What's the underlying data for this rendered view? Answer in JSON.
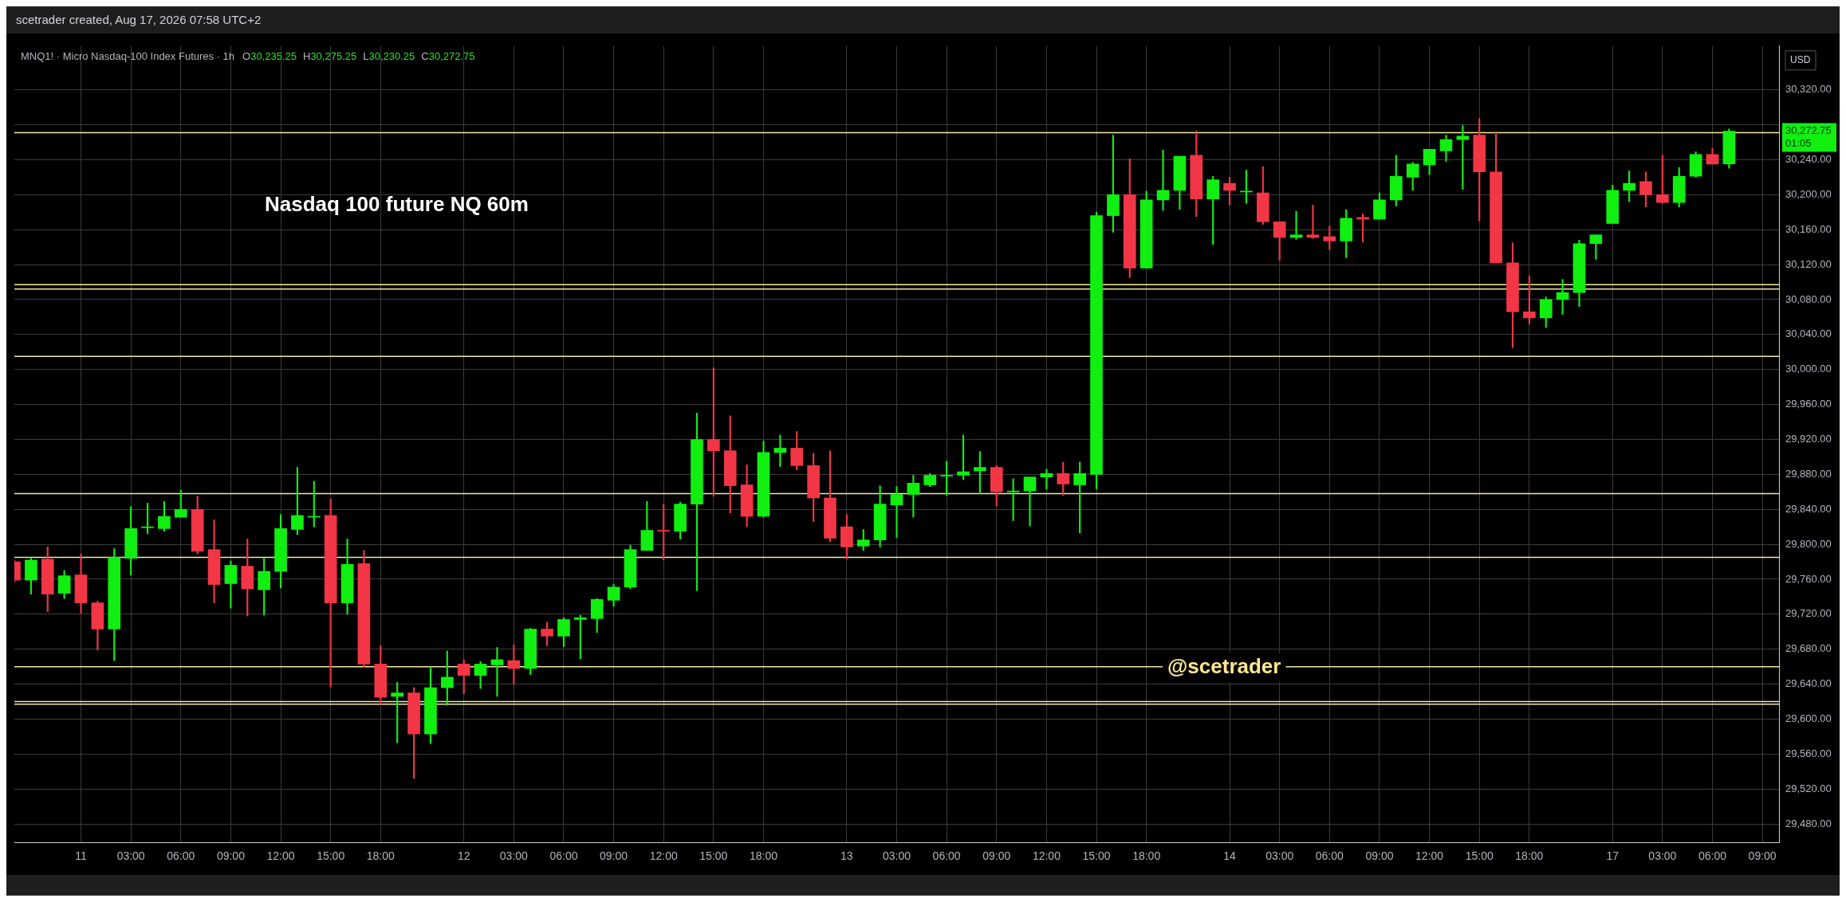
{
  "chart_data": {
    "type": "candlestick",
    "title": "Nasdaq 100 future NQ 60m",
    "subtitle": "MNQ1! · Micro Nasdaq-100 Index Futures · 1h",
    "annotations": [
      "scetrader created, Aug 17, 2026 07:58 UTC+2",
      "O30,235.25 H30,275.25 L30,230.25 C30,272.75",
      "USD",
      "@scetrader",
      "30,272.75",
      "01:05"
    ],
    "categories": [
      null,
      null,
      null,
      null,
      "11",
      null,
      null,
      "03:00",
      null,
      null,
      "06:00",
      null,
      null,
      "09:00",
      null,
      null,
      "12:00",
      null,
      null,
      "15:00",
      null,
      null,
      "18:00",
      null,
      null,
      null,
      null,
      "12",
      null,
      null,
      "03:00",
      null,
      null,
      "06:00",
      null,
      null,
      "09:00",
      null,
      null,
      "12:00",
      null,
      null,
      "15:00",
      null,
      null,
      "18:00",
      null,
      null,
      null,
      null,
      "13",
      null,
      null,
      "03:00",
      null,
      null,
      "06:00",
      null,
      null,
      "09:00",
      null,
      null,
      "12:00",
      null,
      null,
      "15:00",
      null,
      null,
      "18:00",
      null,
      null,
      null,
      null,
      "14",
      null,
      null,
      "03:00",
      null,
      null,
      "06:00",
      null,
      null,
      "09:00",
      null,
      null,
      "12:00",
      null,
      null,
      "15:00",
      null,
      null,
      "18:00",
      null,
      null,
      null,
      null,
      "17",
      null,
      null,
      "03:00",
      null,
      null,
      "06:00",
      null,
      null,
      "09:00",
      null
    ],
    "ohlc": [
      [
        29780,
        29782,
        29757,
        29759
      ],
      [
        29759,
        29784,
        29743,
        29782
      ],
      [
        29783,
        29797,
        29723,
        29743
      ],
      [
        29744,
        29770,
        29738,
        29764
      ],
      [
        29765,
        29789,
        29721,
        29733
      ],
      [
        29733,
        29735,
        29679,
        29703
      ],
      [
        29703,
        29795,
        29667,
        29785
      ],
      [
        29784,
        29843,
        29765,
        29818
      ],
      [
        29819,
        29847,
        29812,
        29820
      ],
      [
        29818,
        29849,
        29815,
        29832
      ],
      [
        29831,
        29862,
        29831,
        29840
      ],
      [
        29840,
        29855,
        29789,
        29792
      ],
      [
        29794,
        29828,
        29733,
        29754
      ],
      [
        29755,
        29781,
        29727,
        29776
      ],
      [
        29775,
        29806,
        29718,
        29749
      ],
      [
        29748,
        29784,
        29719,
        29769
      ],
      [
        29769,
        29834,
        29750,
        29818
      ],
      [
        29817,
        29888,
        29811,
        29833
      ],
      [
        29831,
        29872,
        29820,
        29832
      ],
      [
        29833,
        29852,
        29637,
        29733
      ],
      [
        29733,
        29806,
        29720,
        29777
      ],
      [
        29778,
        29793,
        29660,
        29663
      ],
      [
        29663,
        29684,
        29617,
        29625
      ],
      [
        29626,
        29642,
        29573,
        29630
      ],
      [
        29630,
        29636,
        29532,
        29583
      ],
      [
        29583,
        29660,
        29572,
        29636
      ],
      [
        29636,
        29678,
        29616,
        29648
      ],
      [
        29663,
        29668,
        29629,
        29650
      ],
      [
        29650,
        29666,
        29635,
        29663
      ],
      [
        29662,
        29682,
        29626,
        29668
      ],
      [
        29667,
        29685,
        29640,
        29658
      ],
      [
        29658,
        29704,
        29651,
        29703
      ],
      [
        29703,
        29711,
        29684,
        29695
      ],
      [
        29695,
        29716,
        29683,
        29714
      ],
      [
        29714,
        29719,
        29669,
        29716
      ],
      [
        29715,
        29738,
        29699,
        29737
      ],
      [
        29736,
        29754,
        29729,
        29751
      ],
      [
        29751,
        29799,
        29749,
        29794
      ],
      [
        29793,
        29849,
        29793,
        29816
      ],
      [
        29816,
        29846,
        29782,
        29815
      ],
      [
        29815,
        29848,
        29806,
        29846
      ],
      [
        29846,
        29950,
        29747,
        29920
      ],
      [
        29920,
        30002,
        29855,
        29907
      ],
      [
        29907,
        29947,
        29836,
        29867
      ],
      [
        29868,
        29891,
        29820,
        29832
      ],
      [
        29832,
        29918,
        29831,
        29905
      ],
      [
        29905,
        29925,
        29889,
        29910
      ],
      [
        29910,
        29929,
        29885,
        29890
      ],
      [
        29890,
        29904,
        29826,
        29853
      ],
      [
        29853,
        29907,
        29803,
        29807
      ],
      [
        29820,
        29834,
        29783,
        29797
      ],
      [
        29798,
        29817,
        29793,
        29805
      ],
      [
        29805,
        29867,
        29797,
        29846
      ],
      [
        29845,
        29866,
        29808,
        29857
      ],
      [
        29857,
        29879,
        29831,
        29870
      ],
      [
        29868,
        29881,
        29866,
        29879
      ],
      [
        29878,
        29895,
        29856,
        29879
      ],
      [
        29879,
        29925,
        29874,
        29883
      ],
      [
        29884,
        29906,
        29858,
        29888
      ],
      [
        29888,
        29890,
        29844,
        29860
      ],
      [
        29860,
        29875,
        29827,
        29861
      ],
      [
        29861,
        29877,
        29821,
        29877
      ],
      [
        29877,
        29886,
        29863,
        29881
      ],
      [
        29881,
        29894,
        29856,
        29869
      ],
      [
        29868,
        29894,
        29813,
        29881
      ],
      [
        29880,
        30180,
        29863,
        30176
      ],
      [
        30176,
        30268,
        30157,
        30200
      ],
      [
        30200,
        30241,
        30105,
        30116
      ],
      [
        30116,
        30204,
        30116,
        30194
      ],
      [
        30194,
        30251,
        30182,
        30205
      ],
      [
        30205,
        30244,
        30183,
        30244
      ],
      [
        30245,
        30273,
        30175,
        30195
      ],
      [
        30195,
        30221,
        30143,
        30217
      ],
      [
        30213,
        30220,
        30188,
        30205
      ],
      [
        30203,
        30228,
        30190,
        30204
      ],
      [
        30202,
        30232,
        30166,
        30169
      ],
      [
        30169,
        30169,
        30125,
        30151
      ],
      [
        30151,
        30181,
        30149,
        30154
      ],
      [
        30154,
        30188,
        30150,
        30151
      ],
      [
        30152,
        30164,
        30137,
        30147
      ],
      [
        30147,
        30183,
        30128,
        30173
      ],
      [
        30174,
        30178,
        30146,
        30172
      ],
      [
        30172,
        30202,
        30172,
        30194
      ],
      [
        30194,
        30245,
        30187,
        30221
      ],
      [
        30220,
        30237,
        30205,
        30235
      ],
      [
        30234,
        30252,
        30223,
        30252
      ],
      [
        30250,
        30268,
        30238,
        30263
      ],
      [
        30263,
        30279,
        30206,
        30267
      ],
      [
        30268,
        30287,
        30170,
        30226
      ],
      [
        30226,
        30272,
        30122,
        30122
      ],
      [
        30122,
        30145,
        30025,
        30066
      ],
      [
        30066,
        30107,
        30052,
        30059
      ],
      [
        30059,
        30083,
        30048,
        30080
      ],
      [
        30080,
        30103,
        30063,
        30088
      ],
      [
        30088,
        30148,
        30072,
        30144
      ],
      [
        30144,
        30154,
        30126,
        30154
      ],
      [
        30167,
        30211,
        30167,
        30205
      ],
      [
        30205,
        30227,
        30192,
        30213
      ],
      [
        30215,
        30226,
        30186,
        30200
      ],
      [
        30200,
        30245,
        30190,
        30191
      ],
      [
        30191,
        30231,
        30186,
        30221
      ],
      [
        30221,
        30249,
        30220,
        30246
      ],
      [
        30246,
        30253,
        30235,
        30235
      ],
      [
        30235.25,
        30275.25,
        30230.25,
        30272.75
      ],
      null,
      null,
      null
    ],
    "colors": [
      "#f23645",
      "#10ef10",
      "#f23645",
      "#10ef10",
      "#f23645",
      "#f23645",
      "#10ef10",
      "#10ef10",
      "#10ef10",
      "#10ef10",
      "#10ef10",
      "#f23645",
      "#f23645",
      "#10ef10",
      "#f23645",
      "#10ef10",
      "#10ef10",
      "#10ef10",
      "#10ef10",
      "#f23645",
      "#10ef10",
      "#f23645",
      "#f23645",
      "#10ef10",
      "#f23645",
      "#10ef10",
      "#10ef10",
      "#f23645",
      "#10ef10",
      "#10ef10",
      "#f23645",
      "#10ef10",
      "#f23645",
      "#10ef10",
      "#10ef10",
      "#10ef10",
      "#10ef10",
      "#10ef10",
      "#10ef10",
      "#f23645",
      "#10ef10",
      "#10ef10",
      "#f23645",
      "#f23645",
      "#f23645",
      "#10ef10",
      "#10ef10",
      "#f23645",
      "#f23645",
      "#f23645",
      "#f23645",
      "#10ef10",
      "#10ef10",
      "#10ef10",
      "#10ef10",
      "#10ef10",
      "#10ef10",
      "#10ef10",
      "#10ef10",
      "#f23645",
      "#10ef10",
      "#10ef10",
      "#10ef10",
      "#f23645",
      "#10ef10",
      "#10ef10",
      "#10ef10",
      "#f23645",
      "#10ef10",
      "#10ef10",
      "#10ef10",
      "#f23645",
      "#10ef10",
      "#f23645",
      "#10ef10",
      "#f23645",
      "#f23645",
      "#10ef10",
      "#f23645",
      "#f23645",
      "#10ef10",
      "#f23645",
      "#10ef10",
      "#10ef10",
      "#10ef10",
      "#10ef10",
      "#10ef10",
      "#10ef10",
      "#f23645",
      "#f23645",
      "#f23645",
      "#f23645",
      "#10ef10",
      "#10ef10",
      "#10ef10",
      "#10ef10",
      "#10ef10",
      "#10ef10",
      "#f23645",
      "#f23645",
      "#10ef10",
      "#10ef10",
      "#f23645",
      "#10ef10",
      null,
      null,
      null
    ],
    "ylim": [
      29459,
      30370
    ],
    "yticks": [
      {
        "value": 29480,
        "label": "29,480.00"
      },
      {
        "value": 29520,
        "label": "29,520.00"
      },
      {
        "value": 29560,
        "label": "29,560.00"
      },
      {
        "value": 29600,
        "label": "29,600.00"
      },
      {
        "value": 29640,
        "label": "29,640.00"
      },
      {
        "value": 29680,
        "label": "29,680.00"
      },
      {
        "value": 29720,
        "label": "29,720.00"
      },
      {
        "value": 29760,
        "label": "29,760.00"
      },
      {
        "value": 29800,
        "label": "29,800.00"
      },
      {
        "value": 29840,
        "label": "29,840.00"
      },
      {
        "value": 29880,
        "label": "29,880.00"
      },
      {
        "value": 29920,
        "label": "29,920.00"
      },
      {
        "value": 29960,
        "label": "29,960.00"
      },
      {
        "value": 30000,
        "label": "30,000.00"
      },
      {
        "value": 30040,
        "label": "30,040.00"
      },
      {
        "value": 30080,
        "label": "30,080.00"
      },
      {
        "value": 30120,
        "label": "30,120.00"
      },
      {
        "value": 30160,
        "label": "30,160.00"
      },
      {
        "value": 30200,
        "label": "30,200.00"
      },
      {
        "value": 30240,
        "label": "30,240.00"
      },
      {
        "value": 30280,
        "label": null
      },
      {
        "value": 30320,
        "label": "30,320.00"
      }
    ],
    "ref_lines": [
      {
        "axis": "y",
        "value": 30271,
        "color": "#f5e9a0"
      },
      {
        "axis": "y",
        "value": 30097,
        "color": "#f5e9a0"
      },
      {
        "axis": "y",
        "value": 30092,
        "color": "#f5e9a0"
      },
      {
        "axis": "y",
        "value": 30015,
        "color": "#f5e9a0"
      },
      {
        "axis": "y",
        "value": 29858,
        "color": "#f5e9a0"
      },
      {
        "axis": "y",
        "value": 29785,
        "color": "#f5e9a0"
      },
      {
        "axis": "y",
        "value": 29660,
        "color": "#f5e9a0"
      },
      {
        "axis": "y",
        "value": 29620,
        "color": "#f5e9a0"
      },
      {
        "axis": "y",
        "value": 29617,
        "color": "#f5e9a0"
      }
    ],
    "grid": true
  }
}
